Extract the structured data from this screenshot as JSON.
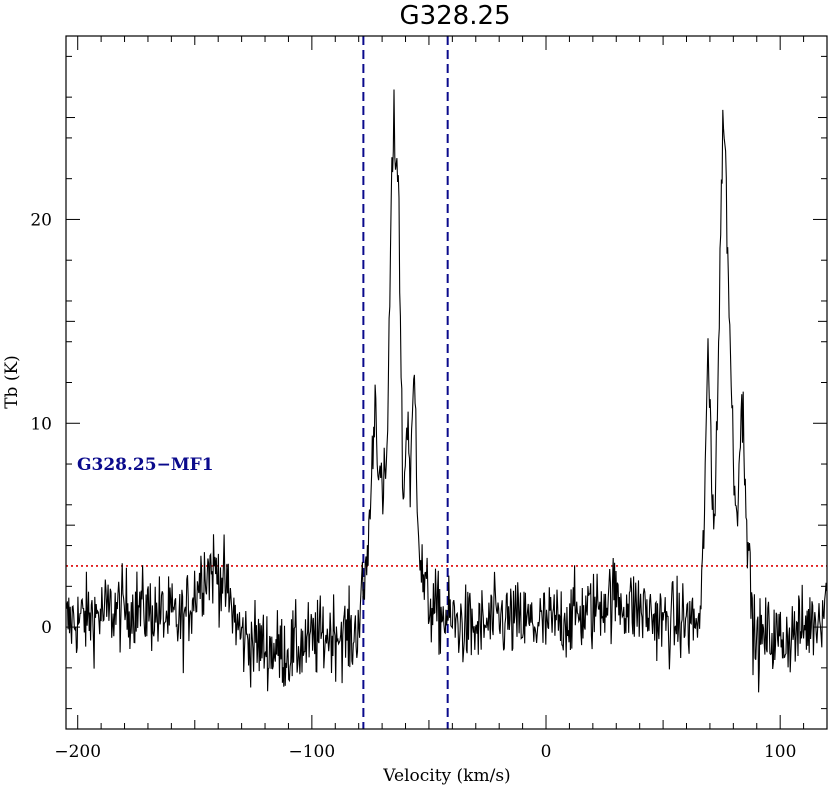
{
  "chart_data": {
    "type": "line",
    "title": "G328.25",
    "xlabel": "Velocity (km/s)",
    "ylabel": "Tb (K)",
    "xlim": [
      -205,
      120
    ],
    "ylim": [
      -5,
      29
    ],
    "xticks": [
      -200,
      -100,
      0,
      100
    ],
    "yticks": [
      0,
      10,
      20
    ],
    "xtick_labels": [
      "−200",
      "−100",
      "0",
      "100"
    ],
    "ytick_labels": [
      "0",
      "10",
      "20"
    ],
    "grid": false,
    "colors": {
      "spectrum": "#000000",
      "vlines": "#0a0a8c",
      "threshold": "#dd0000",
      "annotation": "#0a0a8c"
    },
    "annotation": {
      "text": "G328.25−MF1",
      "x": -200,
      "y": 8
    },
    "threshold": {
      "y": 3,
      "style": "dotted"
    },
    "vlines": [
      {
        "x": -78,
        "style": "dashed"
      },
      {
        "x": -42,
        "style": "dashed"
      }
    ],
    "series": [
      {
        "style": "noisy-line",
        "x": [
          -205,
          -195,
          -185,
          -175,
          -165,
          -155,
          -150,
          -146,
          -142,
          -138,
          -135,
          -130,
          -120,
          -110,
          -100,
          -90,
          -82,
          -79,
          -77,
          -75,
          -73,
          -72,
          -70,
          -68,
          -67,
          -66,
          -65,
          -64,
          -63,
          -62,
          -61,
          -60,
          -59,
          -58,
          -57,
          -56,
          -55,
          -54,
          -53,
          -51,
          -48,
          -45,
          -40,
          -30,
          -20,
          -10,
          0,
          10,
          20,
          25,
          30,
          35,
          40,
          50,
          60,
          66,
          67,
          68,
          69,
          70,
          71,
          72,
          73,
          74,
          75,
          76,
          77,
          78,
          79,
          80,
          81,
          82,
          83,
          84,
          85,
          86,
          87,
          88,
          89,
          90,
          95,
          100,
          110,
          117,
          120
        ],
        "y": [
          0.2,
          0.5,
          0.8,
          1.0,
          0.6,
          0.2,
          1.8,
          2.8,
          2.9,
          2.3,
          1.2,
          -0.5,
          -1.0,
          -1.2,
          -0.7,
          -0.2,
          -0.6,
          1.0,
          2.5,
          6.0,
          11.5,
          9.0,
          6.0,
          8.0,
          14.0,
          21.0,
          24.5,
          23.0,
          22.5,
          13.0,
          6.0,
          8.5,
          11.0,
          6.0,
          10.5,
          12.5,
          7.0,
          4.0,
          2.5,
          1.5,
          0.8,
          0.6,
          0.3,
          -0.2,
          0.4,
          0.2,
          0.1,
          0.5,
          0.8,
          1.4,
          1.5,
          1.0,
          0.9,
          0.2,
          0.3,
          0.2,
          3.0,
          8.0,
          12.5,
          11.0,
          6.0,
          6.0,
          10.0,
          15.5,
          22.0,
          26.0,
          21.0,
          17.0,
          12.0,
          9.0,
          5.5,
          7.0,
          10.0,
          10.5,
          8.0,
          5.0,
          2.5,
          0.5,
          -0.5,
          -0.8,
          -0.4,
          -0.6,
          -0.1,
          0.6,
          2.0
        ]
      }
    ]
  }
}
